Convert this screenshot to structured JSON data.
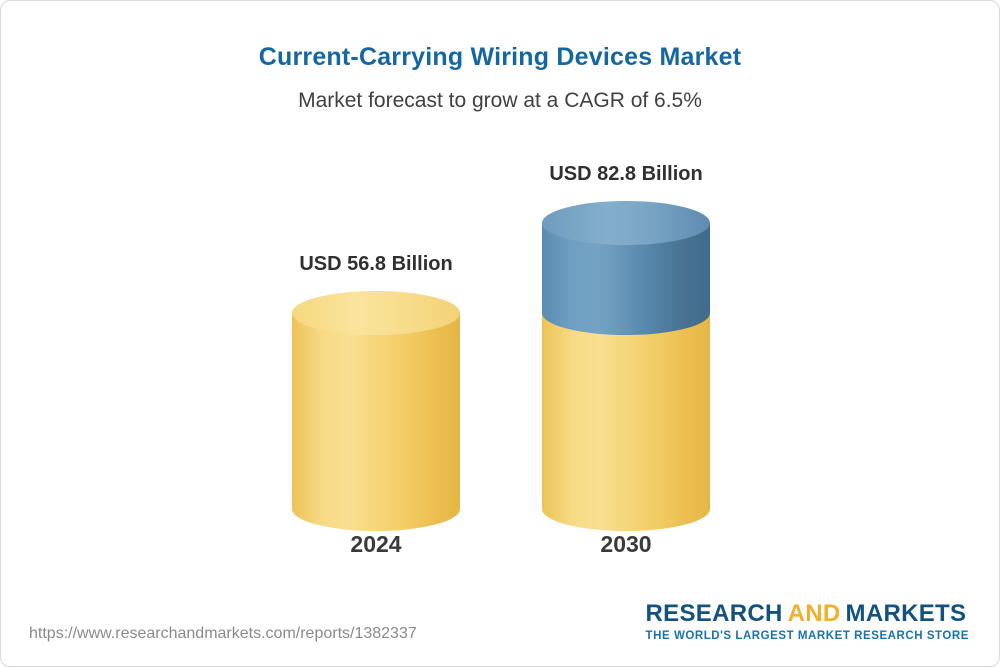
{
  "header": {
    "title": "Current-Carrying Wiring Devices Market",
    "subtitle": "Market forecast to grow at a CAGR of 6.5%"
  },
  "chart_data": {
    "type": "bar",
    "bar_style": "3d-cylinder",
    "title": "Current-Carrying Wiring Devices Market",
    "subtitle": "Market forecast to grow at a CAGR of 6.5%",
    "cagr_percent": 6.5,
    "unit": "USD Billion",
    "categories": [
      "2024",
      "2030"
    ],
    "values": [
      56.8,
      82.8
    ],
    "value_labels": [
      "USD 56.8 Billion",
      "USD 82.8 Billion"
    ],
    "legend": "none",
    "grid": false,
    "colors": {
      "base_yellow": "#F4D06C",
      "growth_blue": "#5488AD"
    },
    "growth_segment": {
      "category": "2030",
      "from": 56.8,
      "to": 82.8,
      "note": "blue top segment of 2030 cylinder represents growth above 2024 value"
    }
  },
  "footer": {
    "url": "https://www.researchandmarkets.com/reports/1382337",
    "logo": {
      "research": "RESEARCH",
      "and": "AND",
      "markets": "MARKETS",
      "tagline": "THE WORLD'S LARGEST MARKET RESEARCH STORE"
    }
  }
}
